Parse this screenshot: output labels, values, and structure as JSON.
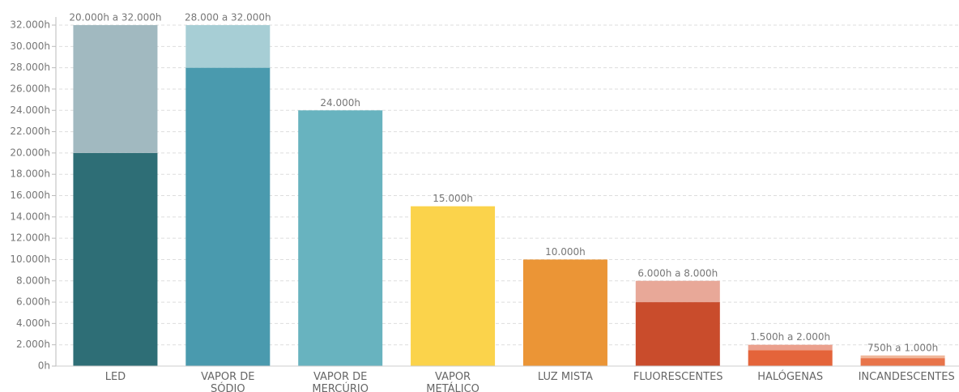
{
  "chart_data": {
    "type": "stacked-bar",
    "categories": [
      "LED",
      "VAPOR DE SÓDIO",
      "VAPOR DE MERCÚRIO",
      "VAPOR METÁLICO",
      "LUZ MISTA",
      "FLUORESCENTES",
      "HALÓGENAS",
      "INCANDESCENTES"
    ],
    "series": [
      {
        "colors": [
          "#2e6e76",
          "#4a9aae",
          "#68b3bf",
          "#fbd34b",
          "#eb9536",
          "#c94c2c",
          "#e4643a",
          "#e8744a"
        ],
        "values": [
          20000,
          28000,
          24000,
          15000,
          10000,
          6000,
          1500,
          750
        ]
      },
      {
        "colors": [
          "#a1b9c0",
          "#a7ced5",
          "#68b3bf",
          "#fbd34b",
          "#eb9536",
          "#e8a898",
          "#eba08d",
          "#f0b89c"
        ],
        "values": [
          12000,
          4000,
          0,
          0,
          0,
          2000,
          500,
          250
        ]
      }
    ],
    "value_labels": [
      "20.000h a 32.000h",
      "28.000 a 32.000h",
      "24.000h",
      "15.000h",
      "10.000h",
      "6.000h a 8.000h",
      "1.500h a 2.000h",
      "750h a 1.000h"
    ],
    "ylim": [
      0,
      32000
    ],
    "yticks": [
      {
        "value": 0,
        "label": "0h"
      },
      {
        "value": 2000,
        "label": "2.000h"
      },
      {
        "value": 4000,
        "label": "4.000h"
      },
      {
        "value": 6000,
        "label": "6.000h"
      },
      {
        "value": 8000,
        "label": "8.000h"
      },
      {
        "value": 10000,
        "label": "10.000h"
      },
      {
        "value": 12000,
        "label": "12.000h"
      },
      {
        "value": 14000,
        "label": "14.000h"
      },
      {
        "value": 16000,
        "label": "16.000h"
      },
      {
        "value": 18000,
        "label": "18.000h"
      },
      {
        "value": 20000,
        "label": "20.000h"
      },
      {
        "value": 22000,
        "label": "22.000h"
      },
      {
        "value": 24000,
        "label": "24.000h"
      },
      {
        "value": 26000,
        "label": "26.000h"
      },
      {
        "value": 28000,
        "label": "28.000h"
      },
      {
        "value": 30000,
        "label": "30.000h"
      },
      {
        "value": 32000,
        "label": "32.000h"
      }
    ],
    "grid": true
  }
}
